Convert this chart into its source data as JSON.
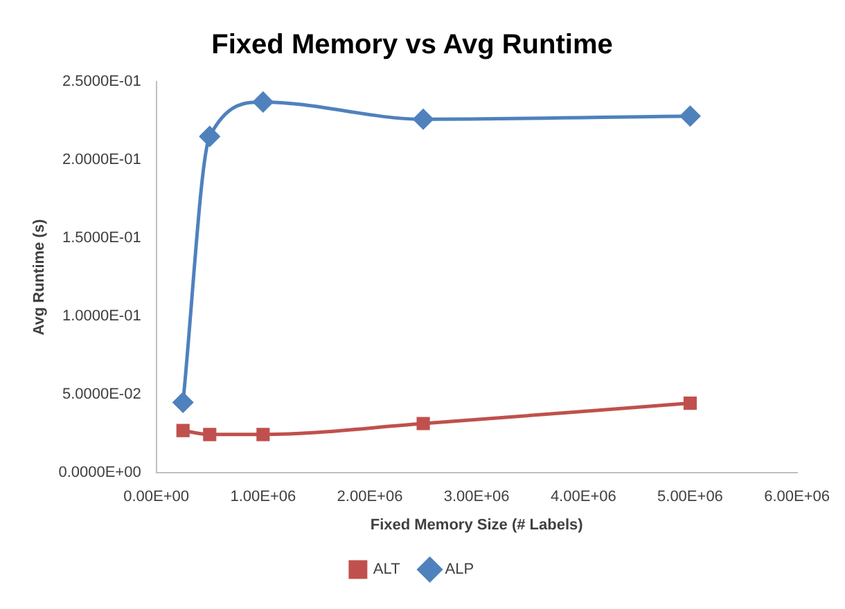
{
  "chart_data": {
    "type": "line",
    "title": "Fixed Memory vs Avg Runtime",
    "xlabel": "Fixed Memory Size (# Labels)",
    "ylabel": "Avg Runtime (s)",
    "x": [
      250000,
      500000,
      1000000,
      2500000,
      5000000
    ],
    "series": [
      {
        "name": "ALT",
        "color": "#c0504d",
        "marker": "square",
        "values": [
          0.027,
          0.0245,
          0.0245,
          0.0315,
          0.0445
        ]
      },
      {
        "name": "ALP",
        "color": "#4f81bd",
        "marker": "diamond",
        "values": [
          0.045,
          0.215,
          0.237,
          0.226,
          0.228
        ]
      }
    ],
    "xlim": [
      0,
      6000000
    ],
    "xticks": [
      {
        "value": 0,
        "label": "0.00E+00"
      },
      {
        "value": 1000000,
        "label": "1.00E+06"
      },
      {
        "value": 2000000,
        "label": "2.00E+06"
      },
      {
        "value": 3000000,
        "label": "3.00E+06"
      },
      {
        "value": 4000000,
        "label": "4.00E+06"
      },
      {
        "value": 5000000,
        "label": "5.00E+06"
      },
      {
        "value": 6000000,
        "label": "6.00E+06"
      }
    ],
    "ylim": [
      0,
      0.25
    ],
    "yticks": [
      {
        "value": 0,
        "label": "0.0000E+00"
      },
      {
        "value": 0.05,
        "label": "5.0000E-02"
      },
      {
        "value": 0.1,
        "label": "1.0000E-01"
      },
      {
        "value": 0.15,
        "label": "1.5000E-01"
      },
      {
        "value": 0.2,
        "label": "2.0000E-01"
      },
      {
        "value": 0.25,
        "label": "2.5000E-01"
      }
    ],
    "grid": false,
    "legend": "bottom"
  }
}
